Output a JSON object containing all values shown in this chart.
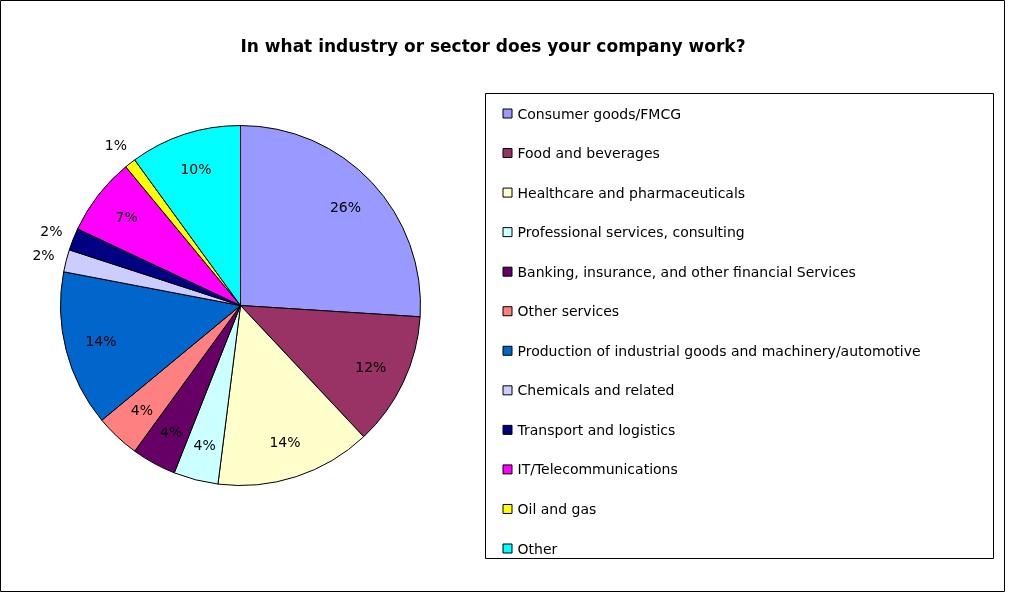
{
  "chart_data": {
    "type": "pie",
    "title": "In what industry or sector does your company work?",
    "categories": [
      "Consumer goods/FMCG",
      "Food and beverages",
      "Healthcare and pharmaceuticals",
      "Professional services, consulting",
      "Banking, insurance, and other financial Services",
      "Other services",
      "Production of industrial goods and machinery/automotive",
      "Chemicals and related",
      "Transport and logistics",
      "IT/Telecommunications",
      "Oil and gas",
      "Other"
    ],
    "values": [
      26,
      12,
      14,
      4,
      4,
      4,
      14,
      2,
      2,
      7,
      1,
      10
    ],
    "value_labels": [
      "26%",
      "12%",
      "14%",
      "4%",
      "4%",
      "4%",
      "14%",
      "2%",
      "2%",
      "7%",
      "1%",
      "10%"
    ],
    "colors": [
      "#9999ff",
      "#993366",
      "#ffffcc",
      "#ccffff",
      "#660066",
      "#ff8080",
      "#0066cc",
      "#ccccff",
      "#000080",
      "#ff00ff",
      "#ffff00",
      "#00ffff"
    ],
    "legend": "right"
  }
}
